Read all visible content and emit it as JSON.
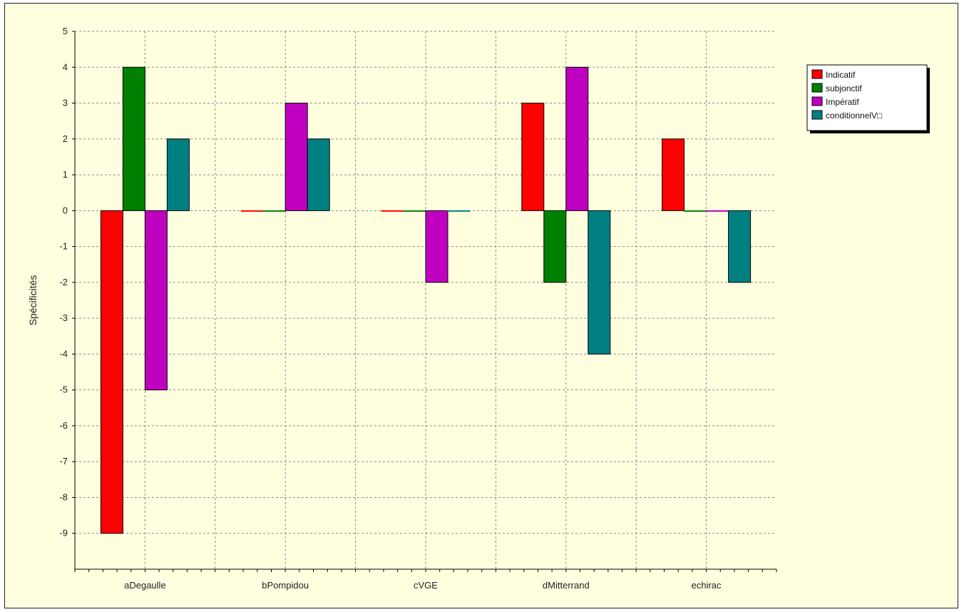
{
  "chart_data": {
    "type": "bar",
    "categories": [
      "aDegaulle",
      "bPompidou",
      "cVGE",
      "dMitterrand",
      "echirac"
    ],
    "series": [
      {
        "name": "Indicatif",
        "color": "#ff0000",
        "values": [
          -9,
          0,
          0,
          3,
          2
        ]
      },
      {
        "name": "subjonctif",
        "color": "#008000",
        "values": [
          4,
          0,
          0,
          -2,
          0
        ]
      },
      {
        "name": "Impératif",
        "color": "#c000c0",
        "values": [
          -5,
          3,
          -2,
          4,
          0
        ]
      },
      {
        "name": "conditionnelV□",
        "color": "#008080",
        "values": [
          2,
          2,
          0,
          -4,
          -2
        ]
      }
    ],
    "ylabel": "Spécificités",
    "xlabel": "",
    "ylim": [
      -10,
      5
    ],
    "yticks": [
      5,
      4,
      3,
      2,
      1,
      0,
      -1,
      -2,
      -3,
      -4,
      -5,
      -6,
      -7,
      -8,
      -9
    ],
    "grid": true,
    "legend": "top-right"
  }
}
